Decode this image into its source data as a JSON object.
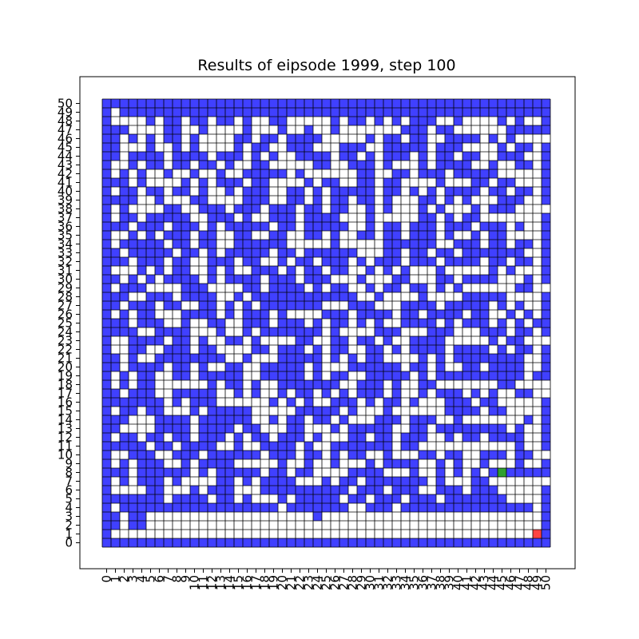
{
  "chart_data": {
    "type": "heatmap",
    "title": "Results of eipsode 1999, step 100",
    "xlabel": "",
    "ylabel": "",
    "xlim": [
      0,
      50
    ],
    "ylim": [
      0,
      50
    ],
    "grid": true,
    "x_ticks": [
      "0",
      "1",
      "2",
      "3",
      "4",
      "5",
      "6",
      "7",
      "8",
      "9",
      "10",
      "11",
      "12",
      "13",
      "14",
      "15",
      "16",
      "17",
      "18",
      "19",
      "20",
      "21",
      "22",
      "23",
      "24",
      "25",
      "26",
      "27",
      "28",
      "29",
      "30",
      "31",
      "32",
      "33",
      "34",
      "35",
      "36",
      "37",
      "38",
      "39",
      "40",
      "41",
      "42",
      "43",
      "44",
      "45",
      "46",
      "47",
      "48",
      "49",
      "50"
    ],
    "y_ticks": [
      "0",
      "1",
      "2",
      "3",
      "4",
      "5",
      "6",
      "7",
      "8",
      "9",
      "10",
      "11",
      "12",
      "13",
      "14",
      "15",
      "16",
      "17",
      "18",
      "19",
      "20",
      "21",
      "22",
      "23",
      "24",
      "25",
      "26",
      "27",
      "28",
      "29",
      "30",
      "31",
      "32",
      "33",
      "34",
      "35",
      "36",
      "37",
      "38",
      "39",
      "40",
      "41",
      "42",
      "43",
      "44",
      "45",
      "46",
      "47",
      "48",
      "49",
      "50"
    ],
    "colors": {
      "wall": "#4040ff",
      "open": "#ffffff",
      "agent": "#30a030",
      "goal": "#ff4444",
      "grid_line": "#000000"
    },
    "legend": [],
    "rows_top_to_bottom": [
      "111111111111111111111111111111111111111111111111111",
      "101111111111111111111111111111111111111111111111111",
      "100001011011011010011000001011010101110010000101001",
      "111000011001000010001001001000000011101100000011111",
      "110101011010000110110111100000101101100111101010000",
      "110001001010000101100111000111001111101110000101101",
      "110111101111011101010011110110101110101101100111001",
      "100101101101101001100000110011101000101111001001101",
      "101010010010010011111010000001100110111011111000001",
      "111010000101011101100001011001101100001000110110001",
      "101101101101001011100110101111101101010111101101101",
      "111100100011000011100110101101101000110101000111001",
      "101000011001110111011101101100101000101000101110000",
      "101101111100111010011101111000100000110101100000001",
      "111011101110101111101101111100101101110111011101001",
      "100101011101100110011001101001101101110100101100001",
      "101111101101100111111000001000001111110011101101101",
      "110111110110101111101101111110001101101101111111001",
      "111011101100111011001011011101011101110111101101101",
      "100010101100101001110101101100101010001000001010001",
      "110101011110101111011101110001000110001101111000101",
      "101110000111000011011110101100101101101010000001100",
      "111001110111100101111111111110010000100001111100001",
      "110111011001101010111111100011100011110111110101001",
      "101011000111101011101000011101111011011110110010101",
      "111011100100110011101110101101010011110101110101011",
      "111100111100010010111111101000011100011100011101101",
      "100111101101001101000011001101101001111000001011000",
      "100110011101100001101110101100110101111011110101101",
      "110100111111110010001111101010110000101011111111001",
      "110111101101001100111110100011111101101001101111001",
      "101011001101111100111110101100111110101111111111011",
      "101011000000101101001111111001110100110000000110000",
      "110111001111100101001011010101110100101110101001100",
      "111111101011100000010101001110101101000111011000001",
      "101101100010111110000011111010001000000111101100001",
      "111000111101111110010110110100011101110010000000101",
      "110000111101111011000110001011111001101111111101001",
      "101101101101110101101110100011011011100101101111001",
      "111110110111100100111101001111111011000000000001001",
      "100111001110111111011101101011001000110110011101100",
      "101011100101111000001001001000101111001010010001001",
      "111011111101011111011011000011110001001010101011111",
      "101011101000011010111100010110111111101000110000000",
      "100001100010111000111111111101110111001110111000001",
      "111111101111011010001011111011011101110111111100001",
      "101111111111111111110111111100111011111111111111101",
      "110110000000000000000000100000000000000000000000001",
      "110110000000000000000000000000000000000000000000001",
      "100000000000000000000000000000000000000000000000001",
      "111111111111111111111111111111111111111111111111111"
    ],
    "agent": {
      "x": 45,
      "y": 8
    },
    "goal": {
      "x": 49,
      "y": 1
    }
  }
}
